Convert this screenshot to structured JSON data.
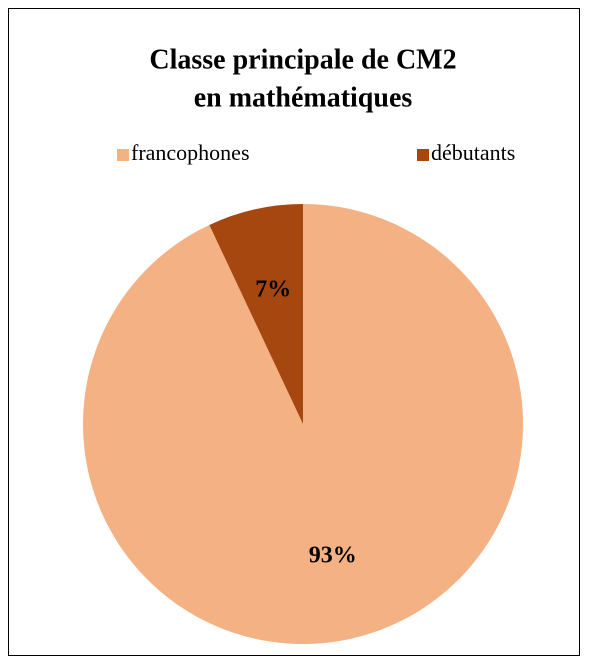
{
  "chart_data": {
    "type": "pie",
    "title": [
      "Classe principale de CM2",
      "en mathématiques"
    ],
    "categories": [
      "francophones",
      "débutants"
    ],
    "values": [
      93,
      7
    ],
    "value_labels": [
      "93%",
      "7%"
    ],
    "colors": [
      "#f4b183",
      "#a5470f"
    ],
    "legend": "top"
  }
}
